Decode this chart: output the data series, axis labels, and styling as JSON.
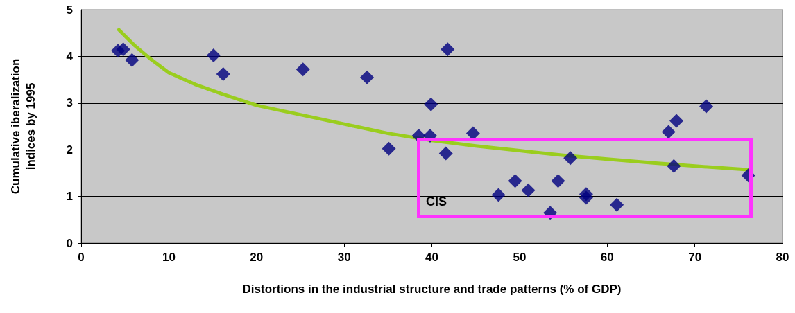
{
  "chart_data": {
    "type": "scatter",
    "xlabel": "Distortions in the industrial structure and trade patterns (% of GDP)",
    "ylabel": "Cumulative iberalization\nindices by 1995",
    "xlim": [
      0,
      80
    ],
    "xticks": [
      0,
      10,
      20,
      30,
      40,
      50,
      60,
      70,
      80
    ],
    "ylim": [
      0,
      5
    ],
    "yticks": [
      0,
      1,
      2,
      3,
      4,
      5
    ],
    "grid": "y",
    "marker": "diamond",
    "series": [
      {
        "color": "#000080",
        "x": [
          4.2,
          4.8,
          5.8,
          15.1,
          16.2,
          25.3,
          32.6,
          35.1,
          38.5,
          39.8,
          39.9,
          41.6,
          41.8,
          44.7,
          47.6,
          49.5,
          51,
          53.5,
          54.4,
          55.8,
          57.6,
          57.6,
          61.1,
          67,
          67.6,
          67.9,
          71.3,
          76.1
        ],
        "values": [
          4.12,
          4.15,
          3.92,
          4.02,
          3.62,
          3.72,
          3.55,
          2.02,
          2.3,
          2.3,
          2.97,
          1.92,
          4.15,
          2.35,
          1.03,
          1.33,
          1.13,
          0.65,
          1.33,
          1.82,
          1.05,
          0.97,
          0.82,
          2.38,
          1.65,
          2.62,
          2.93,
          1.45
        ]
      },
      {
        "type": "line",
        "color": "#9acd1e",
        "marker": "none",
        "x": [
          4.3,
          6,
          8,
          10,
          13,
          16,
          20,
          25,
          30,
          35,
          40,
          45,
          50,
          55,
          60,
          65,
          70,
          76.3
        ],
        "values": [
          4.57,
          4.25,
          3.93,
          3.65,
          3.4,
          3.2,
          2.95,
          2.75,
          2.55,
          2.35,
          2.2,
          2.08,
          1.98,
          1.88,
          1.8,
          1.72,
          1.65,
          1.57
        ]
      }
    ],
    "annotations": [
      "CIS"
    ]
  }
}
